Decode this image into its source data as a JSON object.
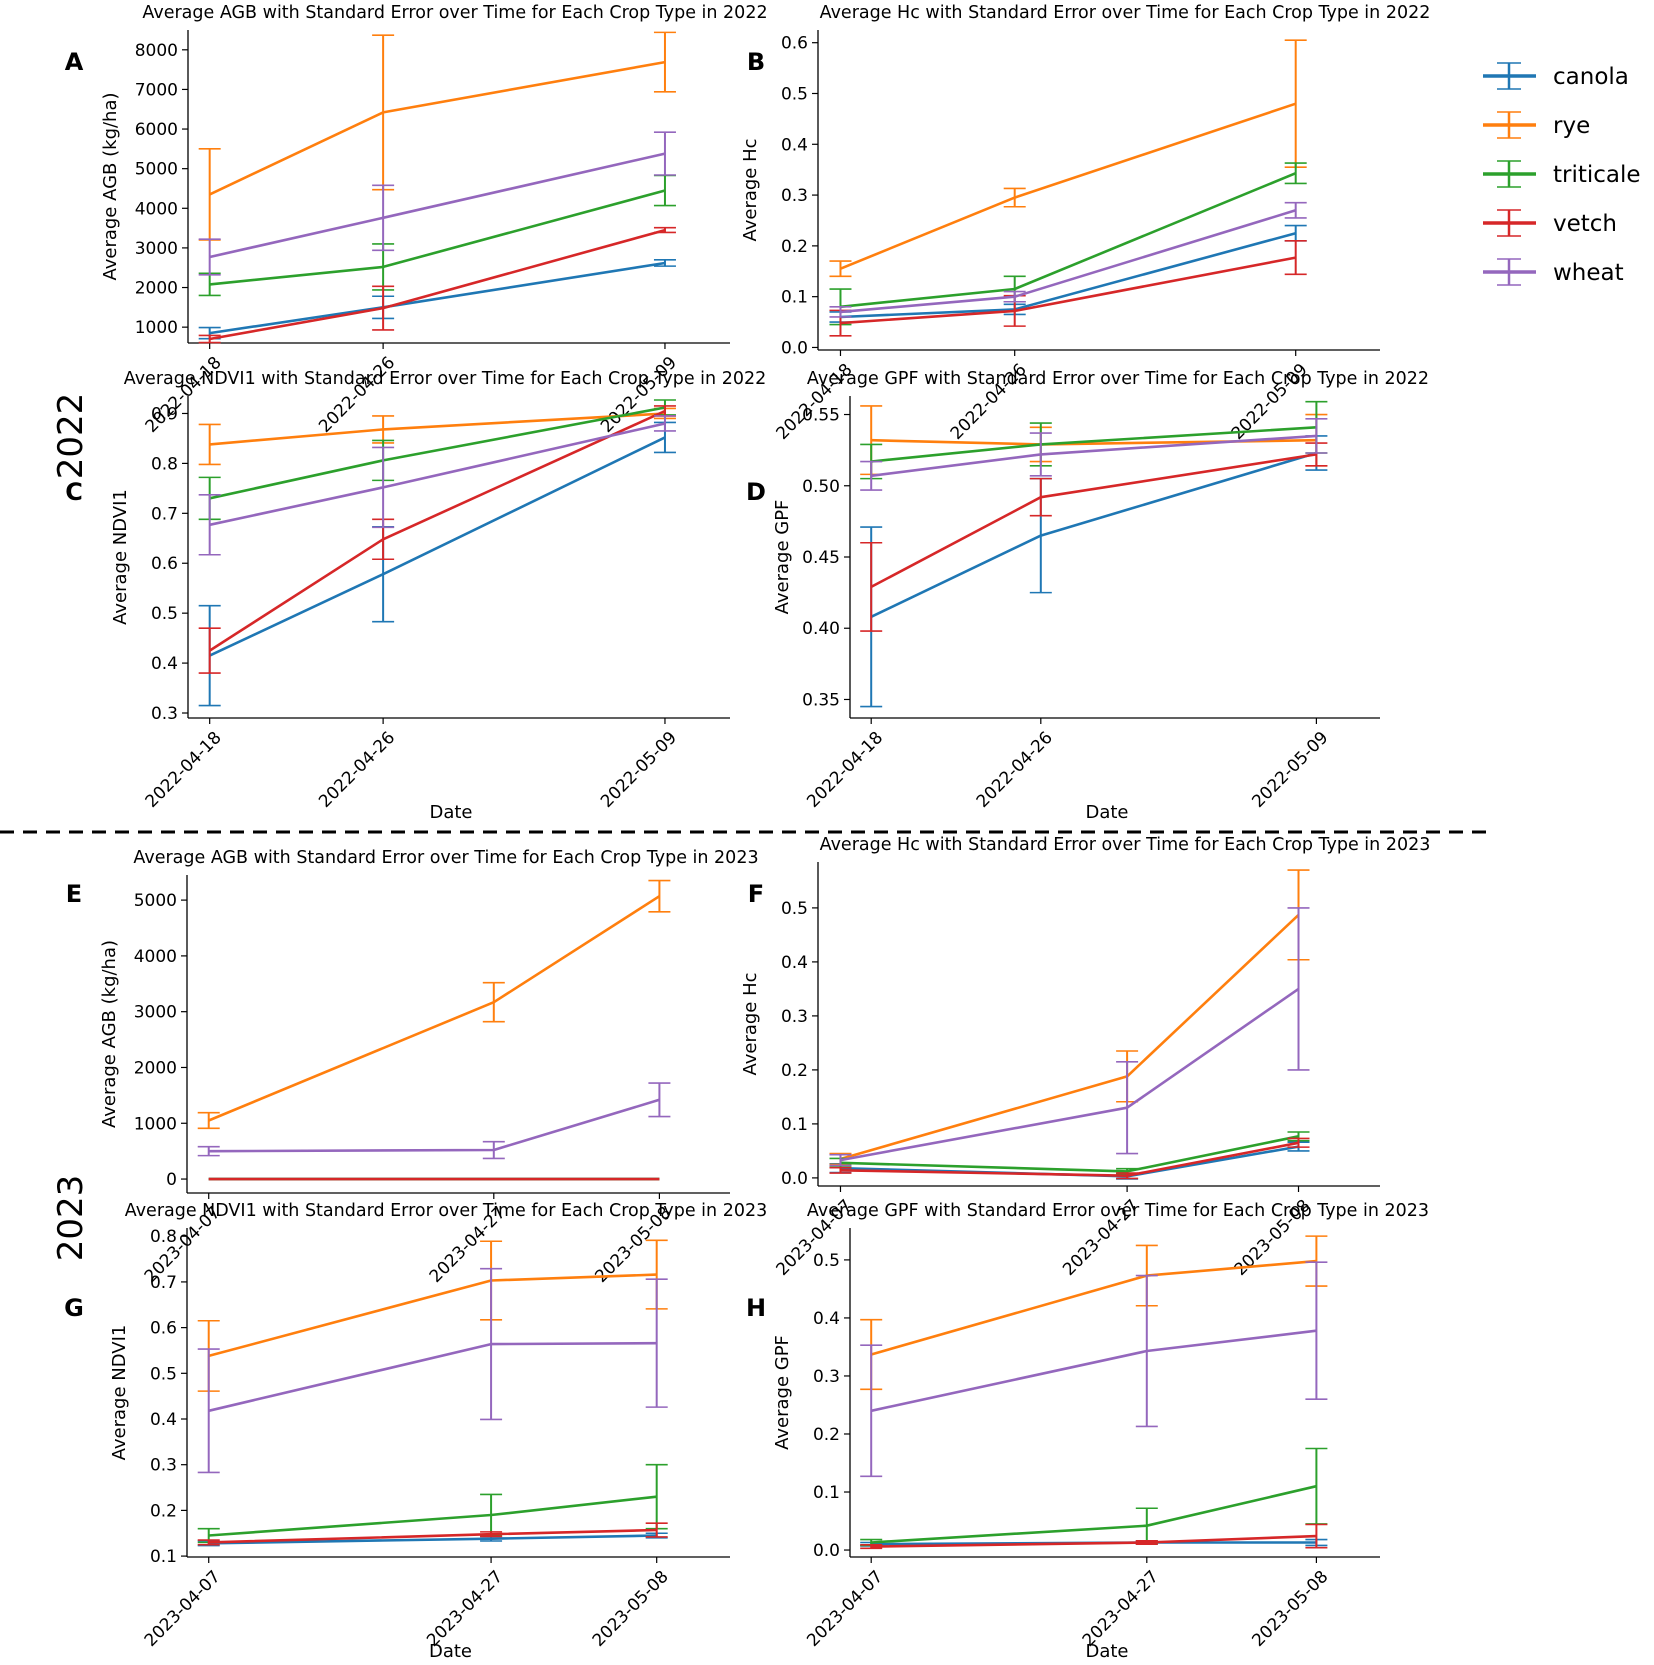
{
  "figure": {
    "year_labels": [
      "2022",
      "2023"
    ],
    "legend": {
      "placement": "top-right",
      "entries": [
        {
          "name": "canola",
          "color": "#1f77b4"
        },
        {
          "name": "rye",
          "color": "#ff7f0e"
        },
        {
          "name": "triticale",
          "color": "#2ca02c"
        },
        {
          "name": "vetch",
          "color": "#d62728"
        },
        {
          "name": "wheat",
          "color": "#9467bd"
        }
      ]
    }
  },
  "chart_data": [
    {
      "type": "line",
      "panel": "A",
      "title": "Average AGB with Standard Error over Time for Each Crop Type in 2022",
      "xlabel": "",
      "ylabel": "Average AGB (kg/ha)",
      "categories": [
        "2022-04-18",
        "2022-04-26",
        "2022-05-09"
      ],
      "ylim": [
        600,
        8500
      ],
      "yticks": [
        1000,
        2000,
        3000,
        4000,
        5000,
        6000,
        7000,
        8000
      ],
      "series": [
        {
          "name": "canola",
          "values": [
            850,
            1500,
            2620
          ],
          "errors": [
            140,
            280,
            80
          ]
        },
        {
          "name": "rye",
          "values": [
            4350,
            6420,
            7690
          ],
          "errors": [
            1150,
            1950,
            750
          ]
        },
        {
          "name": "triticale",
          "values": [
            2080,
            2520,
            4450
          ],
          "errors": [
            280,
            580,
            380
          ]
        },
        {
          "name": "vetch",
          "values": [
            700,
            1480,
            3450
          ],
          "errors": [
            90,
            550,
            60
          ]
        },
        {
          "name": "wheat",
          "values": [
            2770,
            3760,
            5380
          ],
          "errors": [
            450,
            820,
            540
          ]
        }
      ]
    },
    {
      "type": "line",
      "panel": "B",
      "title": "Average Hc with Standard Error over Time for Each Crop Type in 2022",
      "xlabel": "",
      "ylabel": "Average Hc",
      "categories": [
        "2022-04-18",
        "2022-04-26",
        "2022-05-09"
      ],
      "ylim": [
        -0.005,
        0.625
      ],
      "yticks": [
        0.0,
        0.1,
        0.2,
        0.3,
        0.4,
        0.5,
        0.6
      ],
      "series": [
        {
          "name": "canola",
          "values": [
            0.06,
            0.075,
            0.225
          ],
          "errors": [
            0.01,
            0.01,
            0.015
          ]
        },
        {
          "name": "rye",
          "values": [
            0.155,
            0.295,
            0.48
          ],
          "errors": [
            0.015,
            0.018,
            0.125
          ]
        },
        {
          "name": "triticale",
          "values": [
            0.08,
            0.115,
            0.343
          ],
          "errors": [
            0.035,
            0.025,
            0.02
          ]
        },
        {
          "name": "vetch",
          "values": [
            0.048,
            0.072,
            0.177
          ],
          "errors": [
            0.025,
            0.03,
            0.033
          ]
        },
        {
          "name": "wheat",
          "values": [
            0.07,
            0.1,
            0.27
          ],
          "errors": [
            0.01,
            0.01,
            0.015
          ]
        }
      ]
    },
    {
      "type": "line",
      "panel": "C",
      "title": "Average NDVI1 with Standard Error over Time for Each Crop Type in 2022",
      "xlabel": "Date",
      "ylabel": "Average NDVI1",
      "categories": [
        "2022-04-18",
        "2022-04-26",
        "2022-05-09"
      ],
      "ylim": [
        0.29,
        0.935
      ],
      "yticks": [
        0.3,
        0.4,
        0.5,
        0.6,
        0.7,
        0.8,
        0.9
      ],
      "series": [
        {
          "name": "canola",
          "values": [
            0.415,
            0.578,
            0.852
          ],
          "errors": [
            0.1,
            0.095,
            0.03
          ]
        },
        {
          "name": "rye",
          "values": [
            0.838,
            0.868,
            0.9
          ],
          "errors": [
            0.04,
            0.027,
            0.01
          ]
        },
        {
          "name": "triticale",
          "values": [
            0.73,
            0.806,
            0.912
          ],
          "errors": [
            0.042,
            0.04,
            0.015
          ]
        },
        {
          "name": "vetch",
          "values": [
            0.425,
            0.648,
            0.905
          ],
          "errors": [
            0.045,
            0.04,
            0.01
          ]
        },
        {
          "name": "wheat",
          "values": [
            0.677,
            0.752,
            0.88
          ],
          "errors": [
            0.06,
            0.08,
            0.015
          ]
        }
      ]
    },
    {
      "type": "line",
      "panel": "D",
      "title": "Average GPF with Standard Error over Time for Each Crop Type in 2022",
      "xlabel": "Date",
      "ylabel": "Average GPF",
      "categories": [
        "2022-04-18",
        "2022-04-26",
        "2022-05-09"
      ],
      "ylim": [
        0.337,
        0.563
      ],
      "yticks": [
        0.35,
        0.4,
        0.45,
        0.5,
        0.55
      ],
      "series": [
        {
          "name": "canola",
          "values": [
            0.408,
            0.465,
            0.523
          ],
          "errors": [
            0.063,
            0.04,
            0.012
          ]
        },
        {
          "name": "rye",
          "values": [
            0.532,
            0.529,
            0.532
          ],
          "errors": [
            0.024,
            0.012,
            0.018
          ]
        },
        {
          "name": "triticale",
          "values": [
            0.517,
            0.529,
            0.541
          ],
          "errors": [
            0.012,
            0.015,
            0.018
          ]
        },
        {
          "name": "vetch",
          "values": [
            0.429,
            0.492,
            0.522
          ],
          "errors": [
            0.031,
            0.013,
            0.008
          ]
        },
        {
          "name": "wheat",
          "values": [
            0.507,
            0.522,
            0.535
          ],
          "errors": [
            0.01,
            0.015,
            0.012
          ]
        }
      ]
    },
    {
      "type": "line",
      "panel": "E",
      "title": "Average AGB with Standard Error over Time for Each Crop Type in 2023",
      "xlabel": "",
      "ylabel": "Average AGB (kg/ha)",
      "categories": [
        "2023-04-07",
        "2023-04-27",
        "2023-05-08"
      ],
      "ylim": [
        -250,
        5450
      ],
      "yticks": [
        0,
        1000,
        2000,
        3000,
        4000,
        5000
      ],
      "series": [
        {
          "name": "canola",
          "values": [
            0,
            0,
            0
          ],
          "errors": [
            0,
            0,
            0
          ]
        },
        {
          "name": "rye",
          "values": [
            1050,
            3170,
            5070
          ],
          "errors": [
            140,
            350,
            280
          ]
        },
        {
          "name": "triticale",
          "values": [
            0,
            0,
            0
          ],
          "errors": [
            0,
            0,
            0
          ]
        },
        {
          "name": "vetch",
          "values": [
            0,
            0,
            0
          ],
          "errors": [
            0,
            0,
            0
          ]
        },
        {
          "name": "wheat",
          "values": [
            500,
            520,
            1420
          ],
          "errors": [
            80,
            150,
            300
          ]
        }
      ]
    },
    {
      "type": "line",
      "panel": "F",
      "title": "Average Hc with Standard Error over Time for Each Crop Type in 2023",
      "xlabel": "",
      "ylabel": "Average Hc",
      "categories": [
        "2023-04-07",
        "2023-04-27",
        "2023-05-08"
      ],
      "ylim": [
        -0.015,
        0.585
      ],
      "yticks": [
        0.0,
        0.1,
        0.2,
        0.3,
        0.4,
        0.5
      ],
      "series": [
        {
          "name": "canola",
          "values": [
            0.018,
            0.003,
            0.058
          ],
          "errors": [
            0.008,
            0.005,
            0.008
          ]
        },
        {
          "name": "rye",
          "values": [
            0.035,
            0.188,
            0.487
          ],
          "errors": [
            0.01,
            0.047,
            0.083
          ]
        },
        {
          "name": "triticale",
          "values": [
            0.028,
            0.012,
            0.077
          ],
          "errors": [
            0.008,
            0.005,
            0.008
          ]
        },
        {
          "name": "vetch",
          "values": [
            0.014,
            0.004,
            0.065
          ],
          "errors": [
            0.005,
            0.005,
            0.008
          ]
        },
        {
          "name": "wheat",
          "values": [
            0.033,
            0.13,
            0.35
          ],
          "errors": [
            0.01,
            0.085,
            0.15
          ]
        }
      ]
    },
    {
      "type": "line",
      "panel": "G",
      "title": "Average NDVI1 with Standard Error over Time for Each Crop Type in 2023",
      "xlabel": "Date",
      "ylabel": "Average NDVI1",
      "categories": [
        "2023-04-07",
        "2023-04-27",
        "2023-05-08"
      ],
      "ylim": [
        0.098,
        0.818
      ],
      "yticks": [
        0.1,
        0.2,
        0.3,
        0.4,
        0.5,
        0.6,
        0.7,
        0.8
      ],
      "series": [
        {
          "name": "canola",
          "values": [
            0.128,
            0.138,
            0.145
          ],
          "errors": [
            0.005,
            0.005,
            0.005
          ]
        },
        {
          "name": "rye",
          "values": [
            0.538,
            0.703,
            0.716
          ],
          "errors": [
            0.077,
            0.086,
            0.075
          ]
        },
        {
          "name": "triticale",
          "values": [
            0.145,
            0.19,
            0.23
          ],
          "errors": [
            0.015,
            0.045,
            0.07
          ]
        },
        {
          "name": "vetch",
          "values": [
            0.13,
            0.148,
            0.157
          ],
          "errors": [
            0.005,
            0.005,
            0.015
          ]
        },
        {
          "name": "wheat",
          "values": [
            0.418,
            0.564,
            0.566
          ],
          "errors": [
            0.135,
            0.165,
            0.14
          ]
        }
      ]
    },
    {
      "type": "line",
      "panel": "H",
      "title": "Average GPF with Standard Error over Time for Each Crop Type in 2023",
      "xlabel": "Date",
      "ylabel": "Average GPF",
      "categories": [
        "2023-04-07",
        "2023-04-27",
        "2023-05-08"
      ],
      "ylim": [
        -0.012,
        0.555
      ],
      "yticks": [
        0.0,
        0.1,
        0.2,
        0.3,
        0.4,
        0.5
      ],
      "series": [
        {
          "name": "canola",
          "values": [
            0.01,
            0.013,
            0.013
          ],
          "errors": [
            0.003,
            0.003,
            0.005
          ]
        },
        {
          "name": "rye",
          "values": [
            0.337,
            0.473,
            0.498
          ],
          "errors": [
            0.06,
            0.052,
            0.043
          ]
        },
        {
          "name": "triticale",
          "values": [
            0.013,
            0.042,
            0.11
          ],
          "errors": [
            0.005,
            0.03,
            0.065
          ]
        },
        {
          "name": "vetch",
          "values": [
            0.006,
            0.013,
            0.024
          ],
          "errors": [
            0.003,
            0.003,
            0.02
          ]
        },
        {
          "name": "wheat",
          "values": [
            0.24,
            0.343,
            0.378
          ],
          "errors": [
            0.113,
            0.13,
            0.118
          ]
        }
      ]
    }
  ]
}
